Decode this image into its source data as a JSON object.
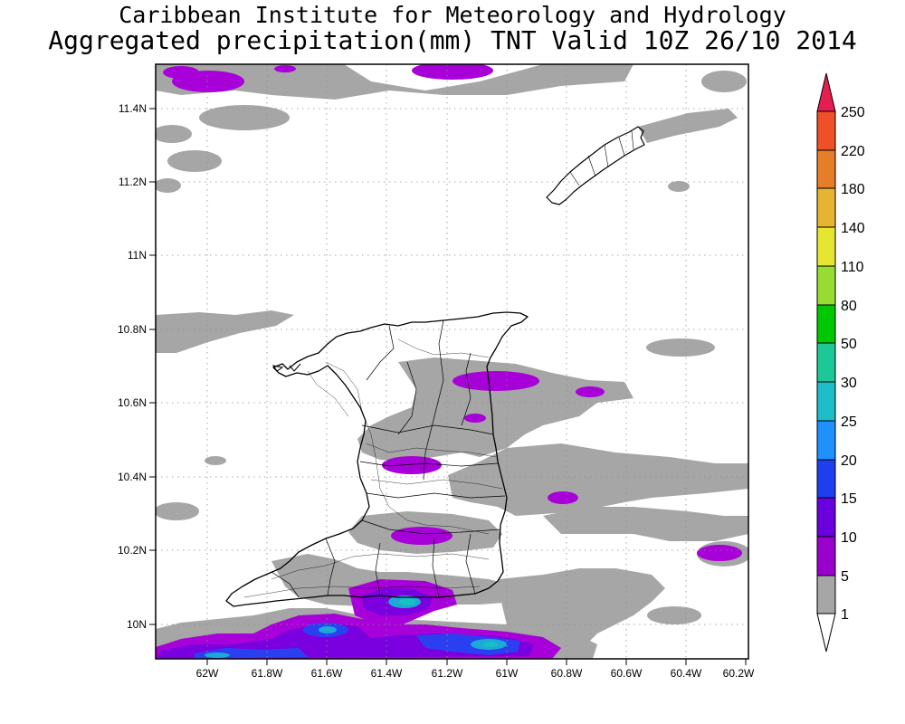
{
  "header": {
    "institution": "Caribbean Institute for Meteorology and Hydrology",
    "product": "Aggregated precipitation(mm) TNT Valid 10Z 26/10 2014"
  },
  "map": {
    "region": "TNT",
    "x_ticks": [
      "62W",
      "61.8W",
      "61.6W",
      "61.4W",
      "61.2W",
      "61W",
      "60.8W",
      "60.6W",
      "60.4W",
      "60.2W"
    ],
    "y_ticks": [
      "11.4N",
      "11.2N",
      "11N",
      "10.8N",
      "10.6N",
      "10.4N",
      "10.2N",
      "10N"
    ],
    "lon_range": [
      -62.14,
      -60.16
    ],
    "lat_range": [
      9.9,
      11.52
    ],
    "gridlines": true,
    "projection": "lat-lon"
  },
  "colorbar": {
    "levels": [
      "1",
      "5",
      "10",
      "15",
      "20",
      "25",
      "30",
      "50",
      "80",
      "110",
      "140",
      "180",
      "220",
      "250"
    ],
    "colors": [
      "#ffffff",
      "#a6a6a6",
      "#9a00cc",
      "#6a00dd",
      "#1f3ef0",
      "#1e90ff",
      "#1ebec8",
      "#1ec896",
      "#00c800",
      "#2ad01e",
      "#96dc32",
      "#e6e632",
      "#e6b432",
      "#e67d28",
      "#f05028",
      "#e61e50"
    ]
  },
  "legend_colors": {
    "gray": "#a6a6a6",
    "violet": "#a800d8",
    "purple": "#7a00e0",
    "blue": "#2a40f0",
    "cyan": "#1ca8d8",
    "teal": "#18c0c0"
  }
}
